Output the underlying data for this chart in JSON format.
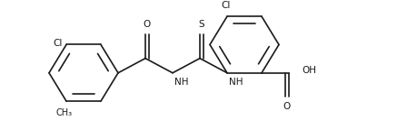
{
  "bg_color": "#ffffff",
  "line_color": "#1a1a1a",
  "lw": 1.2,
  "fs": 7.5,
  "figsize": [
    4.48,
    1.54
  ],
  "dpi": 100,
  "xlim": [
    0,
    448
  ],
  "ylim": [
    0,
    154
  ]
}
